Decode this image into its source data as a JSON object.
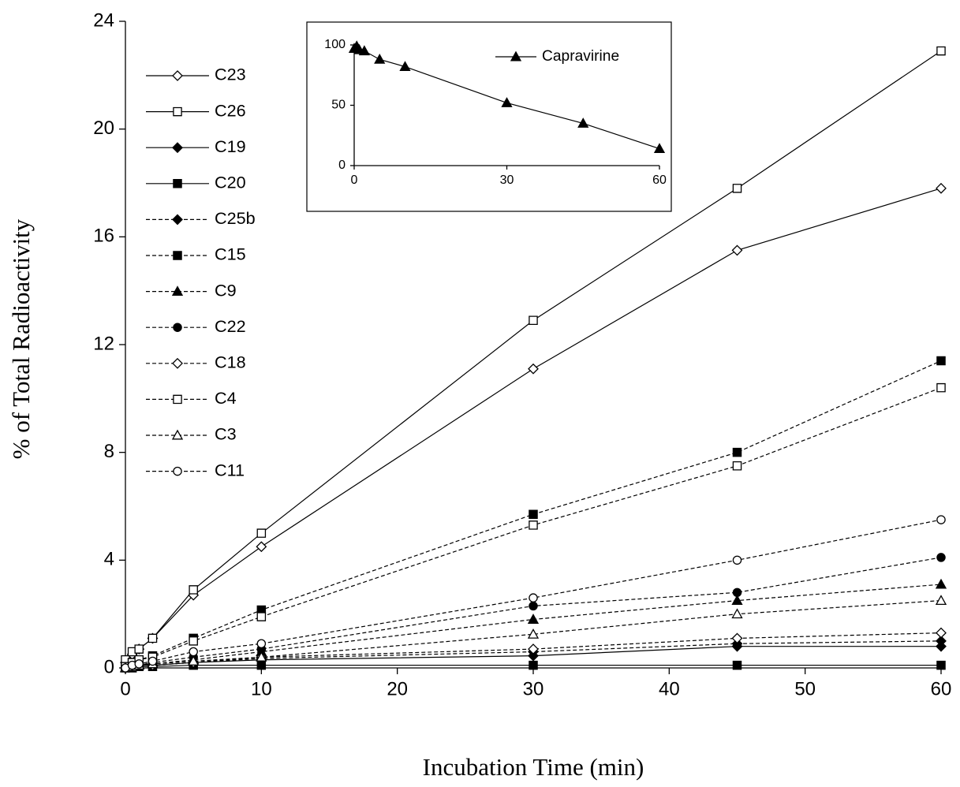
{
  "chart_data": [
    {
      "type": "line",
      "x_label": "Incubation Time (min)",
      "y_label": "% of Total Radioactivity",
      "x": [
        0,
        0.5,
        1,
        2,
        5,
        10,
        30,
        45,
        60
      ],
      "xlim": [
        0,
        60
      ],
      "xticks": [
        0,
        10,
        20,
        30,
        40,
        50,
        60
      ],
      "ylim": [
        0,
        24
      ],
      "yticks": [
        0,
        4,
        8,
        12,
        16,
        20,
        24
      ],
      "legend": "upper left",
      "series": [
        {
          "name": "C23",
          "color": "#000000",
          "line_style": "solid",
          "marker": "diamond",
          "filled": false,
          "values": [
            0.2,
            0.5,
            0.7,
            1.1,
            2.7,
            4.5,
            11.1,
            15.5,
            17.8
          ]
        },
        {
          "name": "C26",
          "color": "#000000",
          "line_style": "solid",
          "marker": "square",
          "filled": false,
          "values": [
            0.3,
            0.6,
            0.7,
            1.1,
            2.9,
            5.0,
            12.9,
            17.8,
            22.9
          ]
        },
        {
          "name": "C19",
          "color": "#000000",
          "line_style": "solid",
          "marker": "diamond",
          "filled": true,
          "values": [
            0,
            0.05,
            0.1,
            0.1,
            0.2,
            0.3,
            0.45,
            0.8,
            0.8
          ]
        },
        {
          "name": "C20",
          "color": "#000000",
          "line_style": "solid",
          "marker": "square",
          "filled": true,
          "values": [
            0,
            0,
            0.05,
            0.05,
            0.1,
            0.1,
            0.1,
            0.1,
            0.1
          ]
        },
        {
          "name": "C25b",
          "color": "#000000",
          "line_style": "dashed",
          "marker": "diamond",
          "filled": true,
          "values": [
            0,
            0.05,
            0.1,
            0.1,
            0.2,
            0.35,
            0.6,
            0.9,
            1.0
          ]
        },
        {
          "name": "C15",
          "color": "#000000",
          "line_style": "dashed",
          "marker": "square",
          "filled": true,
          "values": [
            0.05,
            0.2,
            0.3,
            0.45,
            1.1,
            2.15,
            5.7,
            8.0,
            11.4
          ]
        },
        {
          "name": "C9",
          "color": "#000000",
          "line_style": "dashed",
          "marker": "triangle",
          "filled": true,
          "values": [
            0,
            0.05,
            0.1,
            0.15,
            0.3,
            0.6,
            1.8,
            2.5,
            3.1
          ]
        },
        {
          "name": "C22",
          "color": "#000000",
          "line_style": "dashed",
          "marker": "circle",
          "filled": true,
          "values": [
            0,
            0.1,
            0.1,
            0.2,
            0.4,
            0.7,
            2.3,
            2.8,
            4.1
          ]
        },
        {
          "name": "C18",
          "color": "#000000",
          "line_style": "dashed",
          "marker": "diamond",
          "filled": false,
          "values": [
            0,
            0.05,
            0.1,
            0.1,
            0.2,
            0.4,
            0.7,
            1.1,
            1.3
          ]
        },
        {
          "name": "C4",
          "color": "#000000",
          "line_style": "dashed",
          "marker": "square",
          "filled": false,
          "values": [
            0.05,
            0.2,
            0.3,
            0.4,
            1.0,
            1.9,
            5.3,
            7.5,
            10.4
          ]
        },
        {
          "name": "C3",
          "color": "#000000",
          "line_style": "dashed",
          "marker": "triangle",
          "filled": false,
          "values": [
            0,
            0.05,
            0.1,
            0.15,
            0.25,
            0.4,
            1.25,
            2.0,
            2.5
          ]
        },
        {
          "name": "C11",
          "color": "#000000",
          "line_style": "dashed",
          "marker": "circle",
          "filled": false,
          "values": [
            0,
            0.1,
            0.15,
            0.25,
            0.6,
            0.9,
            2.6,
            4.0,
            5.5
          ]
        }
      ]
    },
    {
      "type": "line",
      "x": [
        0,
        0.5,
        1,
        2,
        5,
        10,
        30,
        45,
        60
      ],
      "xlim": [
        0,
        60
      ],
      "xticks": [
        0,
        30,
        60
      ],
      "ylim": [
        0,
        100
      ],
      "yticks": [
        0,
        50,
        100
      ],
      "legend": "upper right",
      "series": [
        {
          "name": "Capravirine",
          "color": "#000000",
          "line_style": "solid",
          "marker": "triangle",
          "filled": true,
          "values": [
            97,
            99,
            96,
            95,
            88,
            82,
            52,
            35,
            14
          ]
        }
      ]
    }
  ]
}
